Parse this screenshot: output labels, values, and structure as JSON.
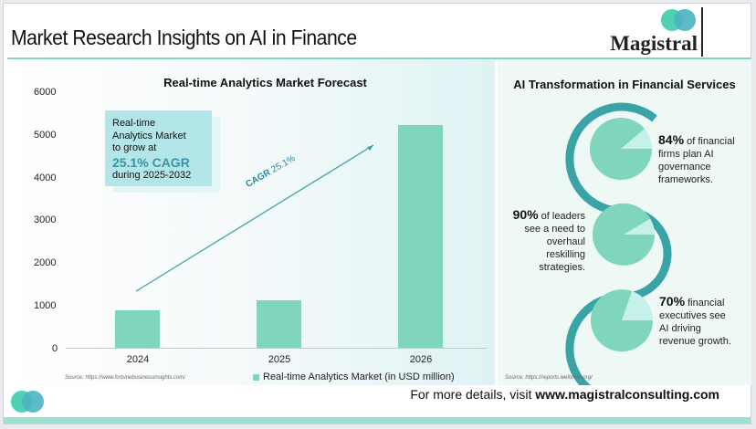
{
  "header": {
    "title": "Market Research Insights on AI in Finance",
    "logo_text": "Magistral"
  },
  "chart_data": {
    "type": "bar",
    "title": "Real-time Analytics Market Forecast",
    "categories": [
      "2024",
      "2025",
      "2026"
    ],
    "series": [
      {
        "name": "Real-time Analytics Market (in USD million)",
        "values": [
          876,
          1110,
          5255
        ],
        "color": "#7fd6bd"
      }
    ],
    "xlabel": "",
    "ylabel": "",
    "ylim": [
      0,
      6000
    ],
    "yticks": [
      "6000",
      "5000",
      "4000",
      "3000",
      "2000",
      "1000",
      "0"
    ],
    "grid": false,
    "legend_position": "bottom",
    "annotations": [
      {
        "type": "trend-arrow",
        "label_prefix": "CAGR",
        "label_value": "25.1%",
        "color": "#3aa3a8"
      },
      {
        "type": "callout",
        "lines": [
          "Real-time",
          "Analytics Market",
          "to grow at"
        ],
        "highlight": "25.1% CAGR",
        "tail": "during 2025-2032"
      }
    ]
  },
  "left_panel": {
    "source": "Source: https://www.fortunebusinessinsights.com/",
    "legend_label": "Real-time Analytics Market (in USD million)",
    "callout": {
      "line1": "Real-time",
      "line2": "Analytics Market",
      "line3": "to grow at",
      "highlight": "25.1% CAGR",
      "tail": "during 2025-2032"
    },
    "cagr_prefix": "CAGR",
    "cagr_value": "25.1%"
  },
  "right_panel": {
    "title": "AI Transformation in Financial Services",
    "stats": [
      {
        "pct": "84%",
        "text_1": " of financial",
        "text_2": "firms plan AI",
        "text_3": "governance",
        "text_4": "frameworks.",
        "value": 84
      },
      {
        "pct": "90%",
        "text_1": " of leaders",
        "text_2": "see a need to",
        "text_3": "overhaul",
        "text_4": "reskilling",
        "text_5": "strategies.",
        "value": 90
      },
      {
        "pct": "70%",
        "text_1": " financial",
        "text_2": "executives see",
        "text_3": "AI driving",
        "text_4": "revenue growth.",
        "value": 70
      }
    ],
    "source": "Source: https://reports.weforum.org/"
  },
  "footer": {
    "prefix": "For more details, visit ",
    "url": "www.magistralconsulting.com"
  },
  "colors": {
    "bar": "#7fd6bd",
    "accent_teal": "#3aa3a8",
    "callout_bg": "#b3e6e8",
    "highlight_text": "#3a93a6",
    "pie_light": "#c6f0ea",
    "footer_band": "#98e2cf"
  }
}
